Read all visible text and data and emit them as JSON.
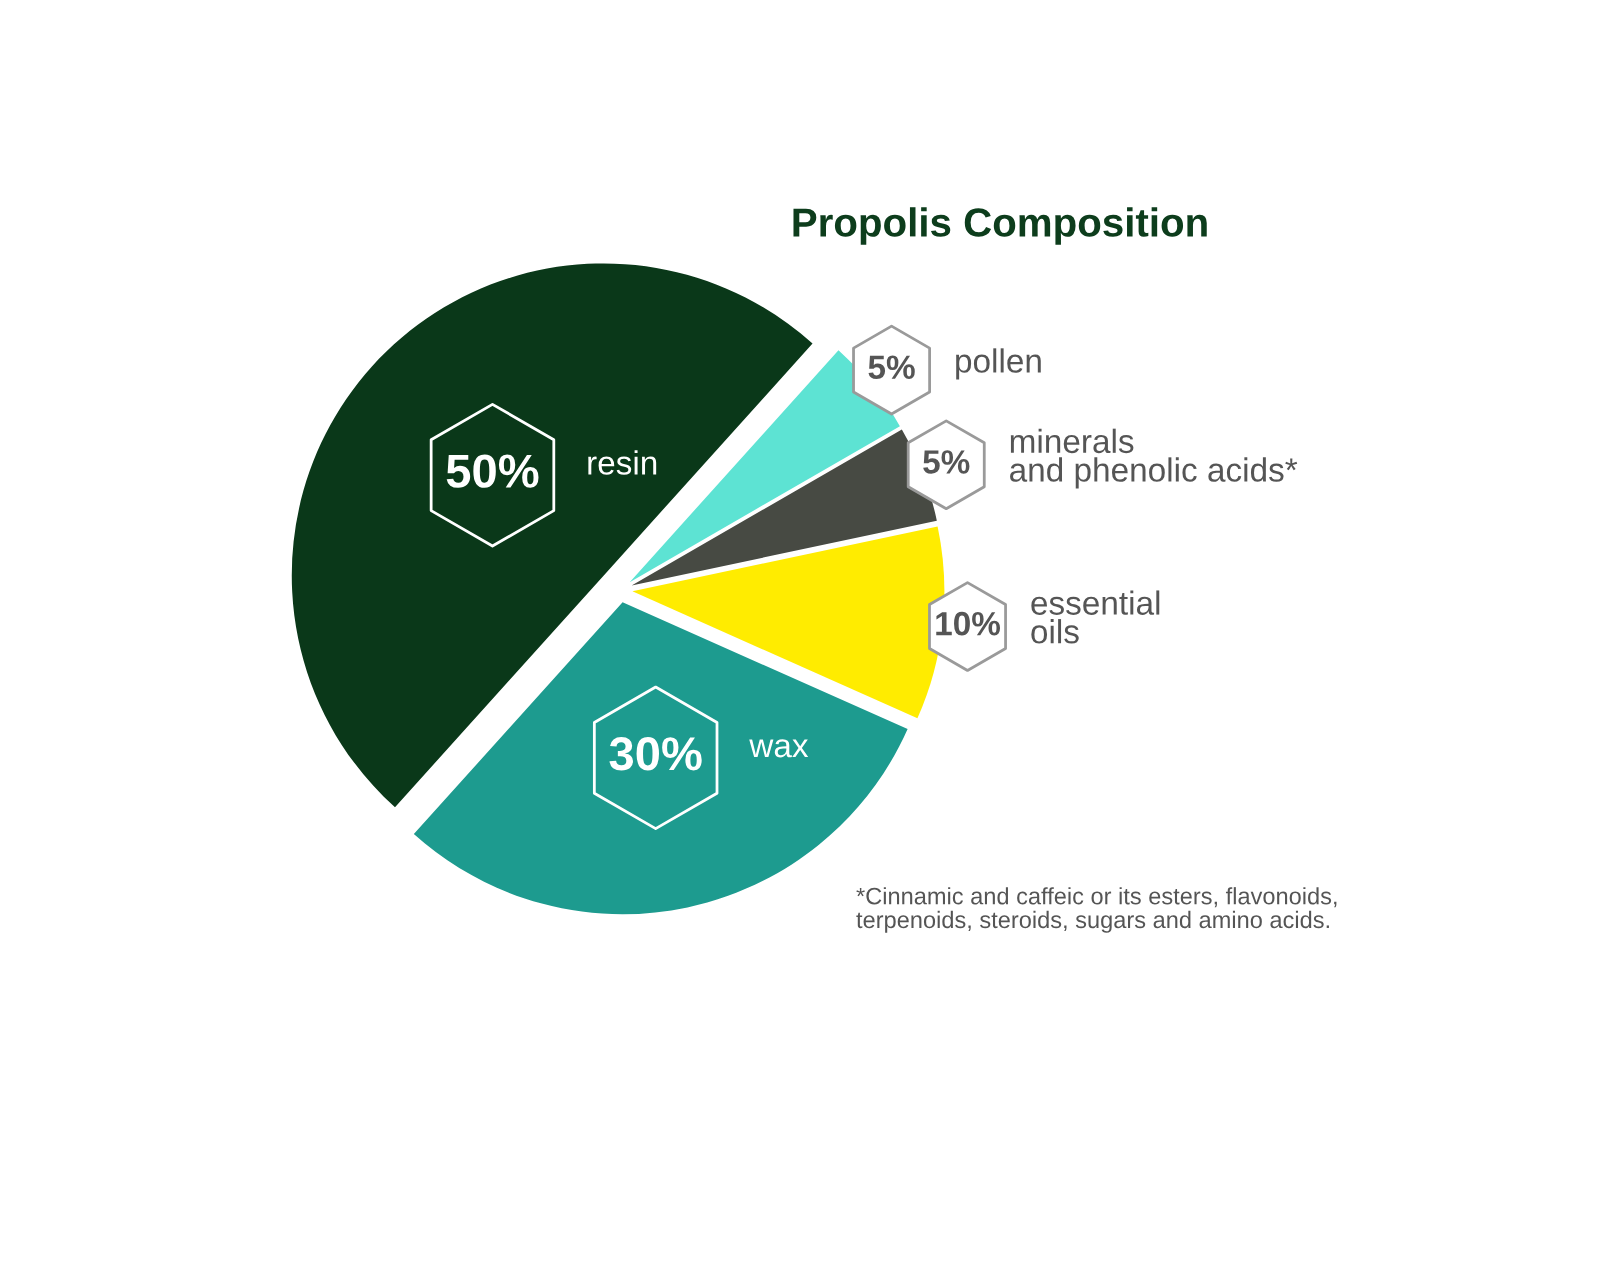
{
  "chart_data": {
    "type": "pie",
    "title": "Propolis Composition",
    "categories": [
      "resin",
      "wax",
      "essential\noils",
      "minerals\nand phenolic acids*",
      "pollen"
    ],
    "values": [
      50,
      30,
      10,
      5,
      5
    ],
    "colors": [
      "#0a3819",
      "#1d9b8f",
      "#ffec00",
      "#474a43",
      "#5de3d3"
    ],
    "value_labels": [
      "50%",
      "30%",
      "10%",
      "5%",
      "5%"
    ],
    "annotations": [
      "*Cinnamic and caffeic or its esters, flavonoids,\nterpenoids, steroids, sugars and amino acids."
    ]
  }
}
